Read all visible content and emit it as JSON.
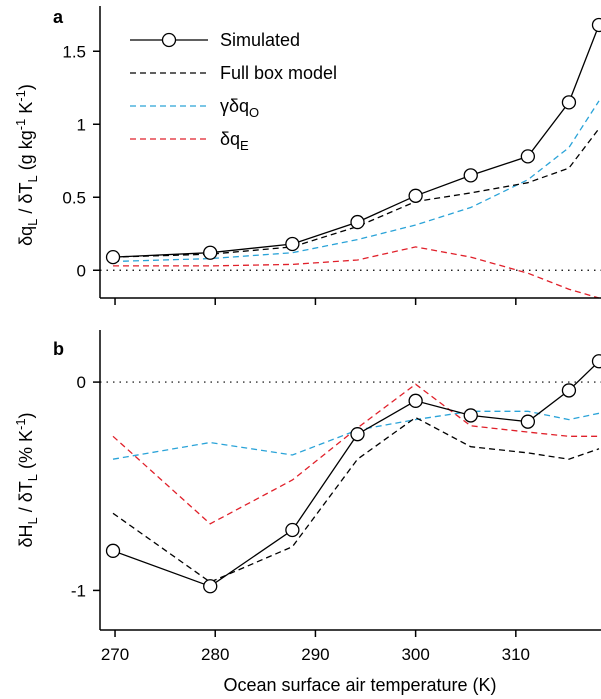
{
  "figure": {
    "x_axis_label": "Ocean surface air temperature (K)",
    "x_ticks": [
      "270",
      "280",
      "290",
      "300",
      "310"
    ]
  },
  "legend": {
    "items": [
      {
        "label": "Simulated",
        "label_sub": "",
        "label_tail": "",
        "color": "#000000",
        "style": "solid-circle"
      },
      {
        "label": "Full box model",
        "label_sub": "",
        "label_tail": "",
        "color": "#000000",
        "style": "dashed"
      },
      {
        "label": "γδq",
        "label_sub": "O",
        "label_tail": "",
        "color": "#2aa3d8",
        "style": "dashed"
      },
      {
        "label": "δq",
        "label_sub": "E",
        "label_tail": "",
        "color": "#e0202a",
        "style": "dashed"
      }
    ]
  },
  "chart_data": [
    {
      "panel": "a",
      "type": "line",
      "ylabel": {
        "p1": "δq",
        "s1": "L",
        "p2": " / δT",
        "s2": "L",
        "p3": " (g kg",
        "sup1": "-1",
        "p4": " K",
        "sup2": "-1",
        "p5": ")"
      },
      "y_ticks": [
        "0",
        "0.5",
        "1",
        "1.5"
      ],
      "xlim": [
        268.5,
        318.5
      ],
      "ylim": [
        -0.19,
        1.81
      ],
      "grid": false,
      "reference_line": 0,
      "series": [
        {
          "name": "Simulated",
          "color": "#000000",
          "style": "solid-circle",
          "x": [
            269.8,
            279.5,
            287.7,
            294.2,
            300.0,
            305.5,
            311.2,
            315.3,
            318.3
          ],
          "y": [
            0.09,
            0.12,
            0.18,
            0.33,
            0.51,
            0.65,
            0.78,
            1.15,
            1.68
          ]
        },
        {
          "name": "Full box model",
          "color": "#000000",
          "style": "dashed",
          "x": [
            269.8,
            279.5,
            287.7,
            294.2,
            300.0,
            305.5,
            311.2,
            315.3,
            318.3
          ],
          "y": [
            0.09,
            0.11,
            0.16,
            0.3,
            0.47,
            0.53,
            0.6,
            0.7,
            0.97
          ]
        },
        {
          "name": "γδq_O",
          "color": "#2aa3d8",
          "style": "dashed",
          "x": [
            269.8,
            279.5,
            287.7,
            294.2,
            300.0,
            305.5,
            311.2,
            315.3,
            318.3
          ],
          "y": [
            0.06,
            0.08,
            0.12,
            0.21,
            0.31,
            0.43,
            0.62,
            0.84,
            1.16
          ]
        },
        {
          "name": "δq_E",
          "color": "#e0202a",
          "style": "dashed",
          "x": [
            269.8,
            279.5,
            287.7,
            294.2,
            300.0,
            305.5,
            311.2,
            315.3,
            318.3
          ],
          "y": [
            0.03,
            0.03,
            0.04,
            0.07,
            0.16,
            0.09,
            -0.02,
            -0.13,
            -0.19
          ]
        }
      ]
    },
    {
      "panel": "b",
      "type": "line",
      "ylabel": {
        "p1": "δH",
        "s1": "L",
        "p2": " / δT",
        "s2": "L",
        "p3": " (% K",
        "sup1": "-1",
        "p4": ")",
        "sup2": "",
        "p5": ""
      },
      "y_ticks": [
        "-1",
        "0"
      ],
      "xlim": [
        268.5,
        318.5
      ],
      "ylim": [
        -1.19,
        0.25
      ],
      "grid": false,
      "reference_line": 0,
      "series": [
        {
          "name": "Simulated",
          "color": "#000000",
          "style": "solid-circle",
          "x": [
            269.8,
            279.5,
            287.7,
            294.2,
            300.0,
            305.5,
            311.2,
            315.3,
            318.3
          ],
          "y": [
            -0.81,
            -0.98,
            -0.71,
            -0.25,
            -0.09,
            -0.16,
            -0.19,
            -0.04,
            0.1
          ]
        },
        {
          "name": "Full box model",
          "color": "#000000",
          "style": "dashed",
          "x": [
            269.8,
            279.5,
            287.7,
            294.2,
            300.0,
            305.5,
            311.2,
            315.3,
            318.3
          ],
          "y": [
            -0.63,
            -0.96,
            -0.79,
            -0.37,
            -0.17,
            -0.31,
            -0.34,
            -0.37,
            -0.32
          ]
        },
        {
          "name": "γδq_O",
          "color": "#2aa3d8",
          "style": "dashed",
          "x": [
            269.8,
            279.5,
            287.7,
            294.2,
            300.0,
            305.5,
            311.2,
            315.3,
            318.3
          ],
          "y": [
            -0.37,
            -0.29,
            -0.35,
            -0.23,
            -0.18,
            -0.14,
            -0.14,
            -0.18,
            -0.15
          ]
        },
        {
          "name": "δq_E",
          "color": "#e0202a",
          "style": "dashed",
          "x": [
            269.8,
            279.5,
            287.7,
            294.2,
            300.0,
            305.5,
            311.2,
            315.3,
            318.3
          ],
          "y": [
            -0.26,
            -0.68,
            -0.47,
            -0.22,
            -0.01,
            -0.21,
            -0.24,
            -0.26,
            -0.26
          ]
        }
      ]
    }
  ]
}
